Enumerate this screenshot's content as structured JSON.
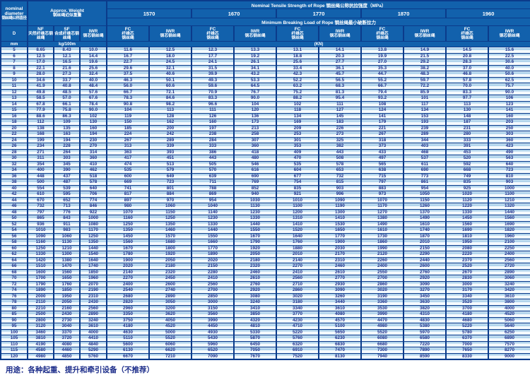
{
  "colors": {
    "header_bg": "#1261ac",
    "grid_border": "#0b3b8b",
    "row_stripe_light": "#b3d5ec",
    "row_stripe_white": "#f6fbff",
    "value_text": "#1c2d8a",
    "header_text": "#ffffff"
  },
  "table": {
    "corner": {
      "en1": "nominal",
      "en2": "diameter",
      "zh": "钢丝绳公称直径"
    },
    "approx_weight": {
      "en": "Approx. Weight",
      "zh": "钢丝绳近似重量"
    },
    "tensile_title": "Nominal Tensile Strength of Rope 钢丝绳公称抗拉强度（MPa）",
    "breaking_title": "Minimum Breaking Load of Rope 钢丝绳最小破断拉力",
    "grades": [
      "1570",
      "1670",
      "1770",
      "1870",
      "1960"
    ],
    "col_d": "D",
    "col_nf": {
      "code": "NF",
      "zh": "天然纤维芯钢丝绳"
    },
    "col_sf": {
      "code": "SF",
      "zh": "合成纤维芯钢丝绳"
    },
    "col_iwr_weight": {
      "code": "IWR",
      "zh": "钢芯钢丝绳"
    },
    "col_fc": {
      "code": "FC",
      "zh1": "纤维芯",
      "zh2": "钢丝绳"
    },
    "col_iwr": {
      "code": "IWR",
      "zh": "钢芯钢丝绳"
    },
    "units": {
      "d": "mm",
      "weight": "kg/100m",
      "load": "(KN)"
    },
    "rows": [
      [
        "5",
        "8.65",
        "8.43",
        "10.0",
        "11.6",
        "12.5",
        "12.3",
        "13.3",
        "13.1",
        "14.1",
        "13.8",
        "14.9",
        "14.5",
        "15.6"
      ],
      [
        "6",
        "12.5",
        "12.1",
        "14.4",
        "16.7",
        "18.0",
        "17.7",
        "19.2",
        "18.8",
        "20.3",
        "19.9",
        "21.5",
        "20.8",
        "22.5"
      ],
      [
        "7",
        "17.0",
        "16.5",
        "19.6",
        "22.7",
        "24.5",
        "24.1",
        "26.1",
        "25.6",
        "27.7",
        "27.0",
        "29.2",
        "28.3",
        "30.6"
      ],
      [
        "8",
        "22.1",
        "21.6",
        "25.6",
        "29.6",
        "32.1",
        "31.5",
        "34.1",
        "33.4",
        "36.1",
        "35.3",
        "38.2",
        "37.0",
        "40.0"
      ],
      [
        "9",
        "28.0",
        "27.3",
        "32.4",
        "37.5",
        "40.6",
        "39.9",
        "43.2",
        "42.3",
        "45.7",
        "44.7",
        "48.3",
        "46.8",
        "50.6"
      ],
      [
        "10",
        "34.6",
        "33.7",
        "40.0",
        "46.3",
        "50.1",
        "49.3",
        "53.3",
        "52.2",
        "56.5",
        "55.2",
        "59.7",
        "57.8",
        "62.5"
      ],
      [
        "11",
        "41.9",
        "40.8",
        "48.4",
        "56.0",
        "60.6",
        "59.6",
        "64.5",
        "63.2",
        "68.3",
        "66.7",
        "72.2",
        "70.0",
        "75.7"
      ],
      [
        "12",
        "49.8",
        "48.5",
        "57.6",
        "66.7",
        "72.1",
        "70.9",
        "76.7",
        "75.2",
        "81.3",
        "79.4",
        "85.9",
        "83.3",
        "90.0"
      ],
      [
        "13",
        "58.5",
        "57.0",
        "67.6",
        "78.3",
        "84.6",
        "83.3",
        "90.0",
        "88.2",
        "95.4",
        "93.2",
        "101",
        "97.7",
        "106"
      ],
      [
        "14",
        "67.8",
        "66.1",
        "78.4",
        "90.8",
        "98.2",
        "96.6",
        "104",
        "102",
        "111",
        "108",
        "117",
        "113",
        "123"
      ],
      [
        "15",
        "77.9",
        "75.8",
        "90.0",
        "104",
        "113",
        "111",
        "120",
        "118",
        "127",
        "124",
        "134",
        "130",
        "141"
      ],
      [
        "16",
        "88.6",
        "86.3",
        "102",
        "119",
        "128",
        "126",
        "136",
        "134",
        "145",
        "141",
        "153",
        "148",
        "160"
      ],
      [
        "18",
        "112",
        "109",
        "130",
        "150",
        "162",
        "160",
        "173",
        "169",
        "183",
        "179",
        "193",
        "187",
        "203"
      ],
      [
        "20",
        "138",
        "135",
        "160",
        "185",
        "200",
        "197",
        "213",
        "209",
        "226",
        "221",
        "239",
        "231",
        "250"
      ],
      [
        "22",
        "168",
        "163",
        "194",
        "224",
        "242",
        "238",
        "258",
        "253",
        "273",
        "267",
        "289",
        "280",
        "303"
      ],
      [
        "24",
        "199",
        "194",
        "230",
        "267",
        "289",
        "284",
        "307",
        "301",
        "325",
        "318",
        "344",
        "333",
        "360"
      ],
      [
        "26",
        "234",
        "228",
        "270",
        "313",
        "339",
        "333",
        "360",
        "353",
        "382",
        "373",
        "403",
        "391",
        "423"
      ],
      [
        "28",
        "271",
        "264",
        "314",
        "363",
        "393",
        "386",
        "418",
        "409",
        "443",
        "433",
        "468",
        "453",
        "490"
      ],
      [
        "30",
        "311",
        "303",
        "360",
        "417",
        "451",
        "443",
        "480",
        "470",
        "508",
        "497",
        "537",
        "520",
        "563"
      ],
      [
        "32",
        "354",
        "345",
        "410",
        "474",
        "513",
        "505",
        "546",
        "535",
        "578",
        "565",
        "611",
        "592",
        "640"
      ],
      [
        "34",
        "400",
        "390",
        "462",
        "535",
        "579",
        "570",
        "616",
        "604",
        "653",
        "638",
        "690",
        "668",
        "723"
      ],
      [
        "36",
        "448",
        "437",
        "518",
        "600",
        "649",
        "639",
        "690",
        "677",
        "732",
        "715",
        "773",
        "749",
        "810"
      ],
      [
        "38",
        "500",
        "487",
        "578",
        "669",
        "723",
        "711",
        "769",
        "754",
        "815",
        "797",
        "861",
        "835",
        "903"
      ],
      [
        "40",
        "554",
        "539",
        "640",
        "741",
        "801",
        "788",
        "852",
        "835",
        "903",
        "883",
        "954",
        "925",
        "1000"
      ],
      [
        "42",
        "610",
        "595",
        "706",
        "817",
        "884",
        "869",
        "940",
        "921",
        "996",
        "973",
        "1050",
        "1020",
        "1100"
      ],
      [
        "44",
        "670",
        "652",
        "774",
        "897",
        "970",
        "954",
        "1030",
        "1010",
        "1090",
        "1070",
        "1150",
        "1120",
        "1210"
      ],
      [
        "46",
        "732",
        "713",
        "846",
        "980",
        "1060",
        "1040",
        "1130",
        "1100",
        "1190",
        "1170",
        "1260",
        "1220",
        "1320"
      ],
      [
        "48",
        "797",
        "776",
        "922",
        "1070",
        "1150",
        "1140",
        "1230",
        "1200",
        "1300",
        "1270",
        "1370",
        "1330",
        "1440"
      ],
      [
        "50",
        "865",
        "843",
        "1000",
        "1160",
        "1250",
        "1230",
        "1330",
        "1310",
        "1410",
        "1380",
        "1490",
        "1450",
        "1560"
      ],
      [
        "52",
        "936",
        "911",
        "1080",
        "1250",
        "1350",
        "1330",
        "1440",
        "1410",
        "1530",
        "1490",
        "1610",
        "1560",
        "1690"
      ],
      [
        "54",
        "1010",
        "983",
        "1170",
        "1350",
        "1460",
        "1440",
        "1550",
        "1520",
        "1650",
        "1610",
        "1740",
        "1690",
        "1820"
      ],
      [
        "56",
        "1090",
        "1060",
        "1250",
        "1450",
        "1570",
        "1550",
        "1670",
        "1640",
        "1770",
        "1730",
        "1870",
        "1810",
        "1960"
      ],
      [
        "58",
        "1160",
        "1130",
        "1350",
        "1560",
        "1680",
        "1660",
        "1790",
        "1760",
        "1900",
        "1860",
        "2010",
        "1950",
        "2100"
      ],
      [
        "60",
        "1250",
        "1210",
        "1440",
        "1670",
        "1800",
        "1770",
        "1920",
        "1880",
        "2030",
        "1990",
        "2150",
        "2080",
        "2250"
      ],
      [
        "62",
        "1330",
        "1300",
        "1540",
        "1780",
        "1920",
        "1890",
        "2050",
        "2010",
        "2170",
        "2120",
        "2290",
        "2220",
        "2400"
      ],
      [
        "64",
        "1420",
        "1380",
        "1640",
        "1900",
        "2050",
        "2020",
        "2180",
        "2140",
        "2310",
        "2260",
        "2440",
        "2370",
        "2560"
      ],
      [
        "66",
        "1510",
        "1470",
        "1740",
        "2020",
        "2180",
        "2150",
        "2320",
        "2270",
        "2460",
        "2400",
        "2600",
        "2520",
        "2720"
      ],
      [
        "68",
        "1600",
        "1560",
        "1850",
        "2140",
        "2320",
        "2280",
        "2460",
        "2410",
        "2610",
        "2550",
        "2760",
        "2670",
        "2890"
      ],
      [
        "70",
        "1700",
        "1650",
        "1960",
        "2270",
        "2450",
        "2410",
        "2610",
        "2560",
        "2770",
        "2700",
        "2920",
        "2830",
        "3060"
      ],
      [
        "72",
        "1790",
        "1760",
        "2070",
        "2400",
        "2600",
        "2560",
        "2760",
        "2710",
        "2930",
        "2860",
        "3090",
        "3000",
        "3240"
      ],
      [
        "74",
        "1890",
        "1850",
        "2190",
        "2540",
        "2740",
        "2700",
        "2920",
        "2860",
        "3090",
        "3020",
        "3270",
        "3170",
        "3420"
      ],
      [
        "76",
        "2000",
        "1950",
        "2310",
        "2680",
        "2890",
        "2850",
        "3080",
        "3020",
        "3260",
        "3190",
        "3450",
        "3340",
        "3610"
      ],
      [
        "78",
        "2110",
        "2050",
        "2430",
        "2820",
        "3050",
        "3000",
        "3240",
        "3180",
        "3440",
        "3360",
        "3630",
        "3520",
        "3800"
      ],
      [
        "80",
        "2210",
        "2160",
        "2560",
        "2960",
        "3200",
        "3150",
        "3410",
        "3340",
        "3610",
        "3530",
        "3820",
        "3700",
        "4000"
      ],
      [
        "85",
        "2500",
        "2430",
        "2890",
        "3350",
        "3620",
        "3560",
        "3850",
        "3770",
        "4080",
        "3990",
        "4310",
        "4180",
        "4520"
      ],
      [
        "90",
        "2800",
        "2730",
        "3240",
        "3750",
        "4050",
        "3990",
        "4320",
        "4230",
        "4570",
        "4470",
        "4830",
        "4680",
        "5060"
      ],
      [
        "95",
        "3120",
        "3040",
        "3610",
        "4180",
        "4520",
        "4450",
        "4810",
        "4710",
        "5100",
        "4980",
        "5380",
        "5220",
        "5640"
      ],
      [
        "100",
        "3460",
        "3370",
        "4000",
        "4630",
        "5000",
        "4930",
        "5330",
        "5220",
        "5650",
        "5520",
        "5970",
        "5780",
        "6250"
      ],
      [
        "105",
        "3810",
        "3720",
        "4410",
        "5110",
        "5520",
        "5430",
        "5870",
        "5760",
        "6230",
        "6080",
        "6580",
        "6370",
        "6890"
      ],
      [
        "110",
        "4190",
        "4080",
        "4840",
        "5600",
        "6060",
        "5960",
        "6450",
        "6320",
        "6830",
        "6680",
        "7220",
        "7000",
        "7570"
      ],
      [
        "115",
        "4580",
        "4460",
        "5290",
        "6130",
        "6620",
        "6520",
        "7050",
        "6910",
        "7470",
        "7300",
        "7890",
        "7650",
        "8270"
      ],
      [
        "120",
        "4980",
        "4850",
        "5760",
        "6670",
        "7210",
        "7090",
        "7670",
        "7520",
        "8130",
        "7940",
        "8590",
        "8330",
        "9000"
      ]
    ]
  },
  "footer": {
    "usage": "用途：各种起重、提升和牵引设备（不推荐）"
  }
}
